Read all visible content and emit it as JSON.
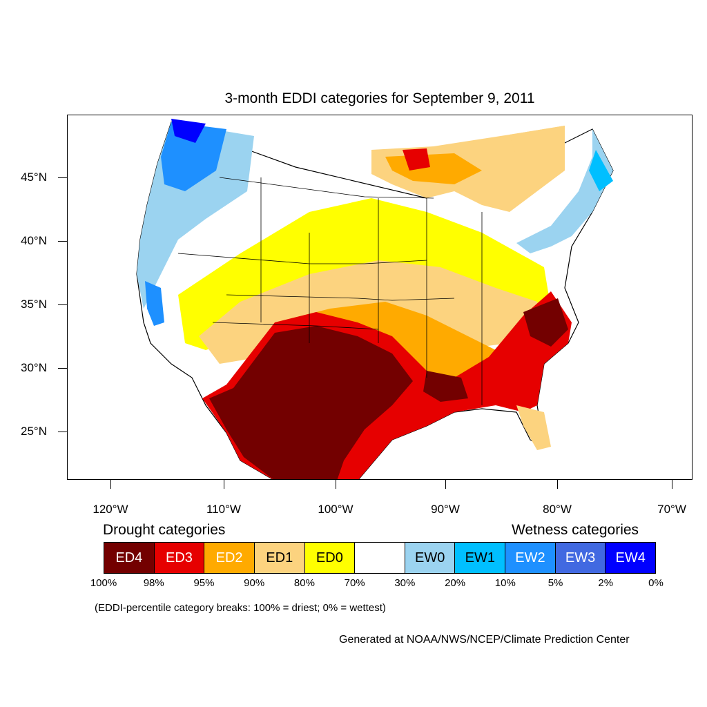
{
  "title": "3-month EDDI categories for September 9, 2011",
  "lat_labels": [
    "45°N",
    "40°N",
    "35°N",
    "30°N",
    "25°N"
  ],
  "lon_labels": [
    "120°W",
    "110°W",
    "100°W",
    "90°W",
    "80°W",
    "70°W"
  ],
  "legend": {
    "drought_heading": "Drought categories",
    "wetness_heading": "Wetness categories",
    "categories": [
      {
        "label": "ED4",
        "color": "#730000",
        "text_color": "#ffffff"
      },
      {
        "label": "ED3",
        "color": "#e60000",
        "text_color": "#ffffff"
      },
      {
        "label": "ED2",
        "color": "#ffaa00",
        "text_color": "#ffffff"
      },
      {
        "label": "ED1",
        "color": "#fcd37f",
        "text_color": "#000000"
      },
      {
        "label": "ED0",
        "color": "#ffff00",
        "text_color": "#000000"
      },
      {
        "label": "",
        "color": "#ffffff",
        "text_color": "#000000"
      },
      {
        "label": "EW0",
        "color": "#9bd3f0",
        "text_color": "#000000"
      },
      {
        "label": "EW1",
        "color": "#00bfff",
        "text_color": "#000000"
      },
      {
        "label": "EW2",
        "color": "#1e90ff",
        "text_color": "#ffffff"
      },
      {
        "label": "EW3",
        "color": "#4169e1",
        "text_color": "#ffffff"
      },
      {
        "label": "EW4",
        "color": "#0000ff",
        "text_color": "#ffffff"
      }
    ],
    "breaks": [
      "100%",
      "98%",
      "95%",
      "90%",
      "80%",
      "70%",
      "30%",
      "20%",
      "10%",
      "5%",
      "2%",
      "0%"
    ],
    "breaks_note": "(EDDI-percentile category breaks: 100% = driest; 0% = wettest)"
  },
  "credit": "Generated at NOAA/NWS/NCEP/Climate Prediction Center"
}
